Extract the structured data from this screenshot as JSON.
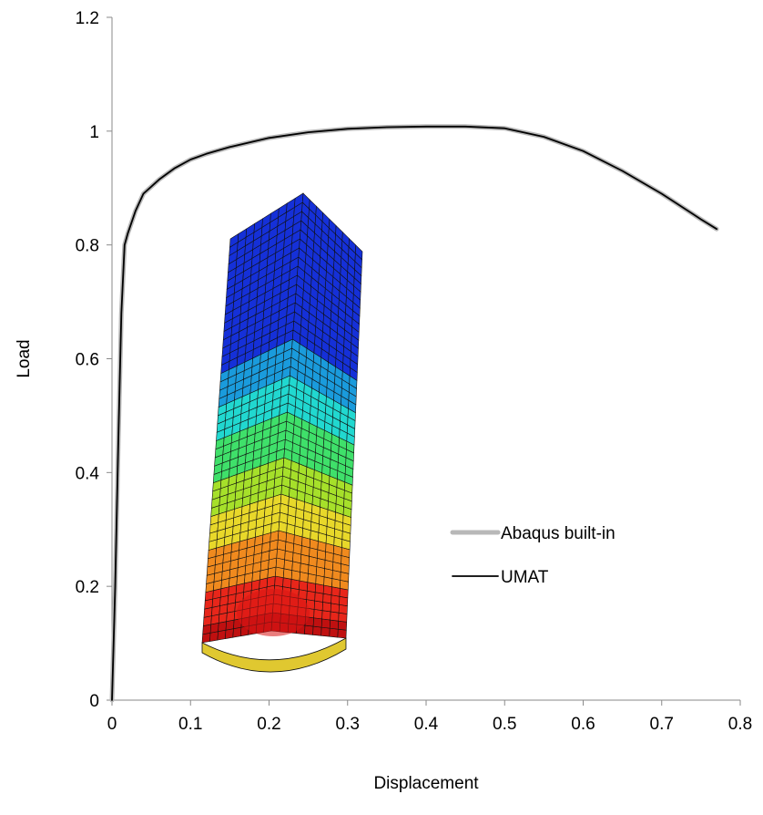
{
  "chart_data": {
    "type": "line",
    "xlabel": "Displacement",
    "ylabel": "Load",
    "xlim": [
      0,
      0.8
    ],
    "ylim": [
      0,
      1.2
    ],
    "x_ticks": [
      "0",
      "0.1",
      "0.2",
      "0.3",
      "0.4",
      "0.5",
      "0.6",
      "0.7",
      "0.8"
    ],
    "y_ticks": [
      "0",
      "0.2",
      "0.4",
      "0.6",
      "0.8",
      "1",
      "1.2"
    ],
    "grid": false,
    "legend_position": "center-right",
    "series": [
      {
        "name": "Abaqus built-in",
        "color": "#b8b8b8",
        "x": [
          0,
          0.004,
          0.008,
          0.012,
          0.016,
          0.02,
          0.03,
          0.04,
          0.06,
          0.08,
          0.1,
          0.12,
          0.15,
          0.2,
          0.25,
          0.3,
          0.35,
          0.4,
          0.45,
          0.5,
          0.55,
          0.6,
          0.65,
          0.7,
          0.75,
          0.77
        ],
        "y": [
          0,
          0.2,
          0.45,
          0.68,
          0.8,
          0.82,
          0.86,
          0.89,
          0.915,
          0.935,
          0.95,
          0.96,
          0.972,
          0.988,
          0.998,
          1.004,
          1.007,
          1.008,
          1.008,
          1.005,
          0.99,
          0.965,
          0.93,
          0.89,
          0.845,
          0.828
        ]
      },
      {
        "name": "UMAT",
        "color": "#000000",
        "x": [
          0,
          0.004,
          0.008,
          0.012,
          0.016,
          0.02,
          0.03,
          0.04,
          0.06,
          0.08,
          0.1,
          0.12,
          0.15,
          0.2,
          0.25,
          0.3,
          0.35,
          0.4,
          0.45,
          0.5,
          0.55,
          0.6,
          0.65,
          0.7,
          0.75,
          0.77
        ],
        "y": [
          0,
          0.2,
          0.45,
          0.68,
          0.8,
          0.82,
          0.86,
          0.89,
          0.915,
          0.935,
          0.95,
          0.96,
          0.972,
          0.988,
          0.998,
          1.004,
          1.007,
          1.008,
          1.008,
          1.005,
          0.99,
          0.965,
          0.93,
          0.89,
          0.845,
          0.828
        ]
      }
    ]
  },
  "inset": {
    "description": "FE mesh contour of deformed column",
    "colors": [
      "#1530d8",
      "#1a9bdc",
      "#21d8d0",
      "#3fe06a",
      "#a6e02a",
      "#e8d82a",
      "#f08a1e",
      "#e8261a",
      "#c01010"
    ]
  }
}
